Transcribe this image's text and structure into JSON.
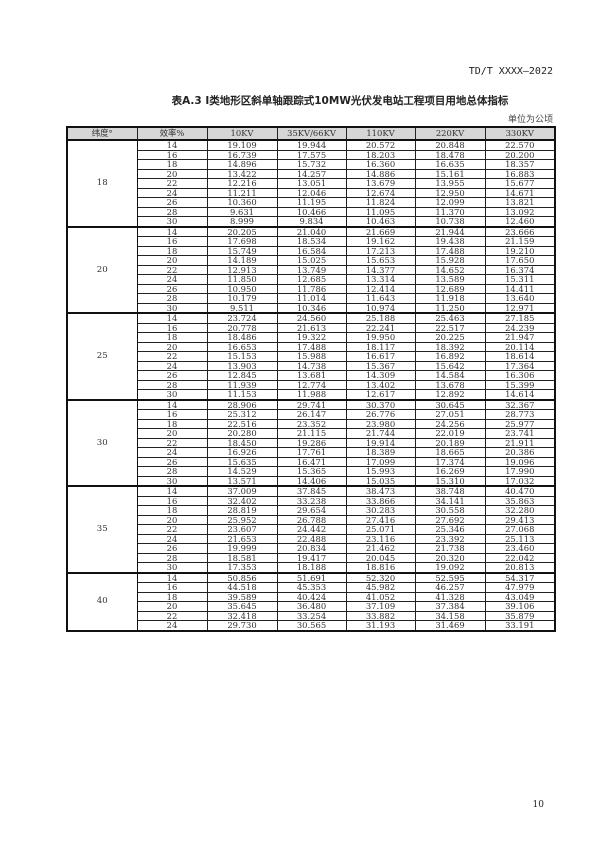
{
  "header": {
    "standard_code": "TD/T XXXX—2022"
  },
  "table": {
    "title": "表A.3 Ⅰ类地形区斜单轴跟踪式10MW光伏发电站工程项目用地总体指标",
    "unit": "单位为公顷",
    "columns": [
      "纬度°",
      "效率%",
      "10KV",
      "35KV/66KV",
      "110KV",
      "220KV",
      "330KV"
    ],
    "groups": [
      {
        "latitude": "18",
        "rows": [
          [
            "14",
            "19.109",
            "19.944",
            "20.572",
            "20.848",
            "22.570"
          ],
          [
            "16",
            "16.739",
            "17.575",
            "18.203",
            "18.478",
            "20.200"
          ],
          [
            "18",
            "14.896",
            "15.732",
            "16.360",
            "16.635",
            "18.357"
          ],
          [
            "20",
            "13.422",
            "14.257",
            "14.886",
            "15.161",
            "16.883"
          ],
          [
            "22",
            "12.216",
            "13.051",
            "13.679",
            "13.955",
            "15.677"
          ],
          [
            "24",
            "11.211",
            "12.046",
            "12.674",
            "12.950",
            "14.671"
          ],
          [
            "26",
            "10.360",
            "11.195",
            "11.824",
            "12.099",
            "13.821"
          ],
          [
            "28",
            "9.631",
            "10.466",
            "11.095",
            "11.370",
            "13.092"
          ],
          [
            "30",
            "8.999",
            "9.834",
            "10.463",
            "10.738",
            "12.460"
          ]
        ]
      },
      {
        "latitude": "20",
        "rows": [
          [
            "14",
            "20.205",
            "21.040",
            "21.669",
            "21.944",
            "23.666"
          ],
          [
            "16",
            "17.698",
            "18.534",
            "19.162",
            "19.438",
            "21.159"
          ],
          [
            "18",
            "15.749",
            "16.584",
            "17.213",
            "17.488",
            "19.210"
          ],
          [
            "20",
            "14.189",
            "15.025",
            "15.653",
            "15.928",
            "17.650"
          ],
          [
            "22",
            "12.913",
            "13.749",
            "14.377",
            "14.652",
            "16.374"
          ],
          [
            "24",
            "11.850",
            "12.685",
            "13.314",
            "13.589",
            "15.311"
          ],
          [
            "26",
            "10.950",
            "11.786",
            "12.414",
            "12.689",
            "14.411"
          ],
          [
            "28",
            "10.179",
            "11.014",
            "11.643",
            "11.918",
            "13.640"
          ],
          [
            "30",
            "9.511",
            "10.346",
            "10.974",
            "11.250",
            "12.971"
          ]
        ]
      },
      {
        "latitude": "25",
        "rows": [
          [
            "14",
            "23.724",
            "24.560",
            "25.188",
            "25.463",
            "27.185"
          ],
          [
            "16",
            "20.778",
            "21.613",
            "22.241",
            "22.517",
            "24.239"
          ],
          [
            "18",
            "18.486",
            "19.322",
            "19.950",
            "20.225",
            "21.947"
          ],
          [
            "20",
            "16.653",
            "17.488",
            "18.117",
            "18.392",
            "20.114"
          ],
          [
            "22",
            "15.153",
            "15.988",
            "16.617",
            "16.892",
            "18.614"
          ],
          [
            "24",
            "13.903",
            "14.738",
            "15.367",
            "15.642",
            "17.364"
          ],
          [
            "26",
            "12.845",
            "13.681",
            "14.309",
            "14.584",
            "16.306"
          ],
          [
            "28",
            "11.939",
            "12.774",
            "13.402",
            "13.678",
            "15.399"
          ],
          [
            "30",
            "11.153",
            "11.988",
            "12.617",
            "12.892",
            "14.614"
          ]
        ]
      },
      {
        "latitude": "30",
        "rows": [
          [
            "14",
            "28.906",
            "29.741",
            "30.370",
            "30.645",
            "32.367"
          ],
          [
            "16",
            "25.312",
            "26.147",
            "26.776",
            "27.051",
            "28.773"
          ],
          [
            "18",
            "22.516",
            "23.352",
            "23.980",
            "24.256",
            "25.977"
          ],
          [
            "20",
            "20.280",
            "21.115",
            "21.744",
            "22.019",
            "23.741"
          ],
          [
            "22",
            "18.450",
            "19.286",
            "19.914",
            "20.189",
            "21.911"
          ],
          [
            "24",
            "16.926",
            "17.761",
            "18.389",
            "18.665",
            "20.386"
          ],
          [
            "26",
            "15.635",
            "16.471",
            "17.099",
            "17.374",
            "19.096"
          ],
          [
            "28",
            "14.529",
            "15.365",
            "15.993",
            "16.269",
            "17.990"
          ],
          [
            "30",
            "13.571",
            "14.406",
            "15.035",
            "15.310",
            "17.032"
          ]
        ]
      },
      {
        "latitude": "35",
        "rows": [
          [
            "14",
            "37.009",
            "37.845",
            "38.473",
            "38.748",
            "40.470"
          ],
          [
            "16",
            "32.402",
            "33.238",
            "33.866",
            "34.141",
            "35.863"
          ],
          [
            "18",
            "28.819",
            "29.654",
            "30.283",
            "30.558",
            "32.280"
          ],
          [
            "20",
            "25.952",
            "26.788",
            "27.416",
            "27.692",
            "29.413"
          ],
          [
            "22",
            "23.607",
            "24.442",
            "25.071",
            "25.346",
            "27.068"
          ],
          [
            "24",
            "21.653",
            "22.488",
            "23.116",
            "23.392",
            "25.113"
          ],
          [
            "26",
            "19.999",
            "20.834",
            "21.462",
            "21.738",
            "23.460"
          ],
          [
            "28",
            "18.581",
            "19.417",
            "20.045",
            "20.320",
            "22.042"
          ],
          [
            "30",
            "17.353",
            "18.188",
            "18.816",
            "19.092",
            "20.813"
          ]
        ]
      },
      {
        "latitude": "40",
        "rows": [
          [
            "14",
            "50.856",
            "51.691",
            "52.320",
            "52.595",
            "54.317"
          ],
          [
            "16",
            "44.518",
            "45.353",
            "45.982",
            "46.257",
            "47.979"
          ],
          [
            "18",
            "39.589",
            "40.424",
            "41.052",
            "41.328",
            "43.049"
          ],
          [
            "20",
            "35.645",
            "36.480",
            "37.109",
            "37.384",
            "39.106"
          ],
          [
            "22",
            "32.418",
            "33.254",
            "33.882",
            "34.158",
            "35.879"
          ],
          [
            "24",
            "29.730",
            "30.565",
            "31.193",
            "31.469",
            "33.191"
          ]
        ]
      }
    ]
  },
  "footer": {
    "page_number": "10"
  }
}
